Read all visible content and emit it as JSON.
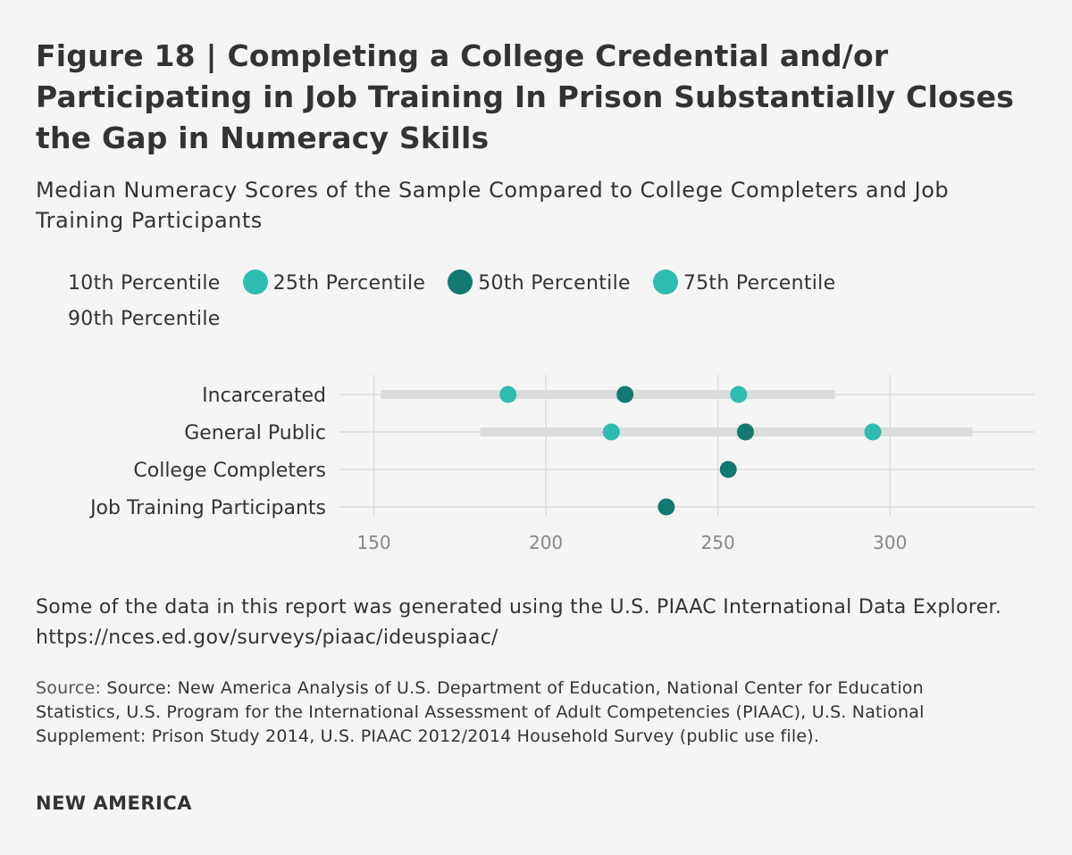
{
  "chart_data": {
    "type": "dot-range",
    "title": "Figure 18 | Completing a College Credential and/or Participating in Job Training In Prison Substantially Closes the Gap in Numeracy Skills",
    "subtitle": "Median Numeracy Scores of the Sample Compared to College Completers and Job Training Participants",
    "legend": [
      {
        "key": "p10",
        "label": "10th Percentile",
        "marker": "none"
      },
      {
        "key": "p25",
        "label": "25th Percentile",
        "marker": "light"
      },
      {
        "key": "p50",
        "label": "50th Percentile",
        "marker": "dark"
      },
      {
        "key": "p75",
        "label": "75th Percentile",
        "marker": "light"
      },
      {
        "key": "p90",
        "label": "90th Percentile",
        "marker": "none"
      }
    ],
    "categories": [
      "Incarcerated",
      "General Public",
      "College Completers",
      "Job Training Participants"
    ],
    "series": [
      {
        "name": "10th Percentile",
        "values": [
          152,
          181,
          null,
          null
        ]
      },
      {
        "name": "25th Percentile",
        "values": [
          189,
          219,
          null,
          null
        ]
      },
      {
        "name": "50th Percentile",
        "values": [
          223,
          258,
          253,
          235
        ]
      },
      {
        "name": "75th Percentile",
        "values": [
          256,
          295,
          null,
          null
        ]
      },
      {
        "name": "90th Percentile",
        "values": [
          284,
          324,
          null,
          null
        ]
      }
    ],
    "xlim": [
      140,
      342
    ],
    "xticks": [
      150,
      200,
      250,
      300
    ],
    "grid": true
  },
  "colors": {
    "light": "#2ebcb0",
    "dark": "#127a72",
    "range": "#dcdcdc",
    "grid": "#dcdcdc"
  },
  "note": "Some of the data in this report was generated using the U.S. PIAAC International Data Explorer. https://nces.ed.gov/surveys/piaac/ideuspiaac/",
  "source_prefix": "Source:",
  "source_text": "Source: New America Analysis of U.S. Department of Education, National Center for Education Statistics, U.S. Program for the International Assessment of Adult Competencies (PIAAC), U.S. National Supplement: Prison Study 2014, U.S. PIAAC 2012/2014 Household Survey (public use file).",
  "brand": "NEW AMERICA"
}
